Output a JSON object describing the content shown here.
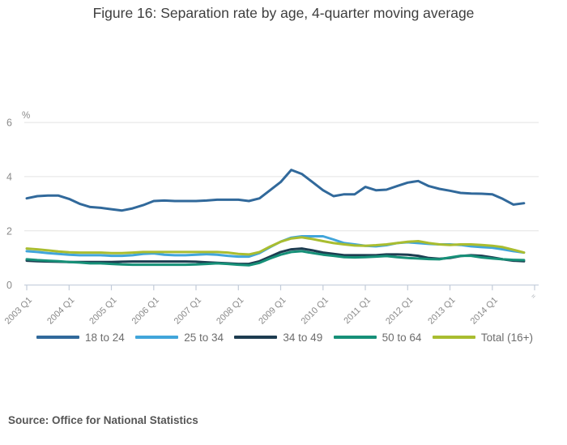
{
  "title": "Figure 16: Separation rate by age, 4-quarter moving average",
  "source": "Source: Office for National Statistics",
  "colors": {
    "axis_line": "#c3ccd9",
    "grid_line": "#e4e4e4",
    "tick_text": "#8a8a8a",
    "end_marker": "#9aa0a8"
  },
  "chart_data": {
    "type": "line",
    "title": "Figure 16: Separation rate by age, 4-quarter moving average",
    "xlabel": "",
    "ylabel": "%",
    "ylim": [
      0,
      6
    ],
    "yticks": [
      0,
      2,
      4,
      6
    ],
    "grid": "horizontal",
    "legend_position": "bottom",
    "x_start_label": "2003 Q1",
    "points_per_year": 4,
    "xtick_labels": [
      "2003 Q1",
      "2004 Q1",
      "2005 Q1",
      "2006 Q1",
      "2007 Q1",
      "2008 Q1",
      "2009 Q1",
      "2010 Q1",
      "2011 Q1",
      "2012 Q1",
      "2013 Q1",
      "2014 Q1"
    ],
    "x_axis_end_marker": "=",
    "series": [
      {
        "name": "18 to 24",
        "color": "#31699b",
        "values": [
          3.2,
          3.28,
          3.3,
          3.3,
          3.18,
          3.0,
          2.88,
          2.85,
          2.8,
          2.75,
          2.83,
          2.95,
          3.1,
          3.12,
          3.1,
          3.1,
          3.1,
          3.12,
          3.15,
          3.15,
          3.15,
          3.1,
          3.2,
          3.5,
          3.8,
          4.25,
          4.1,
          3.8,
          3.5,
          3.28,
          3.35,
          3.35,
          3.62,
          3.5,
          3.52,
          3.65,
          3.78,
          3.84,
          3.65,
          3.55,
          3.48,
          3.4,
          3.38,
          3.37,
          3.35,
          3.18,
          2.97,
          3.02
        ]
      },
      {
        "name": "25 to 34",
        "color": "#41a5da",
        "values": [
          1.25,
          1.22,
          1.18,
          1.15,
          1.12,
          1.1,
          1.1,
          1.1,
          1.08,
          1.08,
          1.1,
          1.15,
          1.17,
          1.12,
          1.1,
          1.1,
          1.12,
          1.14,
          1.12,
          1.08,
          1.05,
          1.05,
          1.18,
          1.4,
          1.6,
          1.75,
          1.8,
          1.8,
          1.8,
          1.68,
          1.55,
          1.5,
          1.45,
          1.43,
          1.47,
          1.55,
          1.58,
          1.55,
          1.52,
          1.5,
          1.5,
          1.48,
          1.43,
          1.4,
          1.38,
          1.32,
          1.25,
          1.2
        ]
      },
      {
        "name": "34 to 49",
        "color": "#1d3c50",
        "values": [
          0.9,
          0.88,
          0.87,
          0.86,
          0.85,
          0.85,
          0.85,
          0.85,
          0.85,
          0.86,
          0.87,
          0.87,
          0.87,
          0.87,
          0.87,
          0.87,
          0.86,
          0.84,
          0.82,
          0.8,
          0.78,
          0.78,
          0.88,
          1.05,
          1.22,
          1.32,
          1.35,
          1.28,
          1.2,
          1.15,
          1.1,
          1.1,
          1.1,
          1.1,
          1.13,
          1.13,
          1.12,
          1.08,
          1.0,
          0.97,
          1.0,
          1.07,
          1.1,
          1.08,
          1.02,
          0.95,
          0.9,
          0.88
        ]
      },
      {
        "name": "50 to 64",
        "color": "#169078",
        "values": [
          0.95,
          0.92,
          0.9,
          0.88,
          0.85,
          0.83,
          0.8,
          0.8,
          0.78,
          0.76,
          0.75,
          0.75,
          0.75,
          0.75,
          0.75,
          0.75,
          0.76,
          0.78,
          0.8,
          0.78,
          0.75,
          0.73,
          0.82,
          0.98,
          1.12,
          1.22,
          1.25,
          1.18,
          1.12,
          1.08,
          1.03,
          1.02,
          1.03,
          1.05,
          1.07,
          1.03,
          1.0,
          0.98,
          0.96,
          0.95,
          1.02,
          1.08,
          1.08,
          1.02,
          0.98,
          0.95,
          0.93,
          0.92
        ]
      },
      {
        "name": "Total (16+)",
        "color": "#a9bd30",
        "values": [
          1.35,
          1.32,
          1.28,
          1.24,
          1.21,
          1.2,
          1.2,
          1.2,
          1.18,
          1.18,
          1.2,
          1.22,
          1.22,
          1.22,
          1.22,
          1.22,
          1.22,
          1.22,
          1.22,
          1.2,
          1.15,
          1.13,
          1.22,
          1.42,
          1.6,
          1.72,
          1.76,
          1.7,
          1.62,
          1.55,
          1.5,
          1.46,
          1.45,
          1.47,
          1.5,
          1.55,
          1.6,
          1.62,
          1.55,
          1.5,
          1.48,
          1.5,
          1.5,
          1.48,
          1.45,
          1.4,
          1.3,
          1.2
        ]
      }
    ]
  }
}
